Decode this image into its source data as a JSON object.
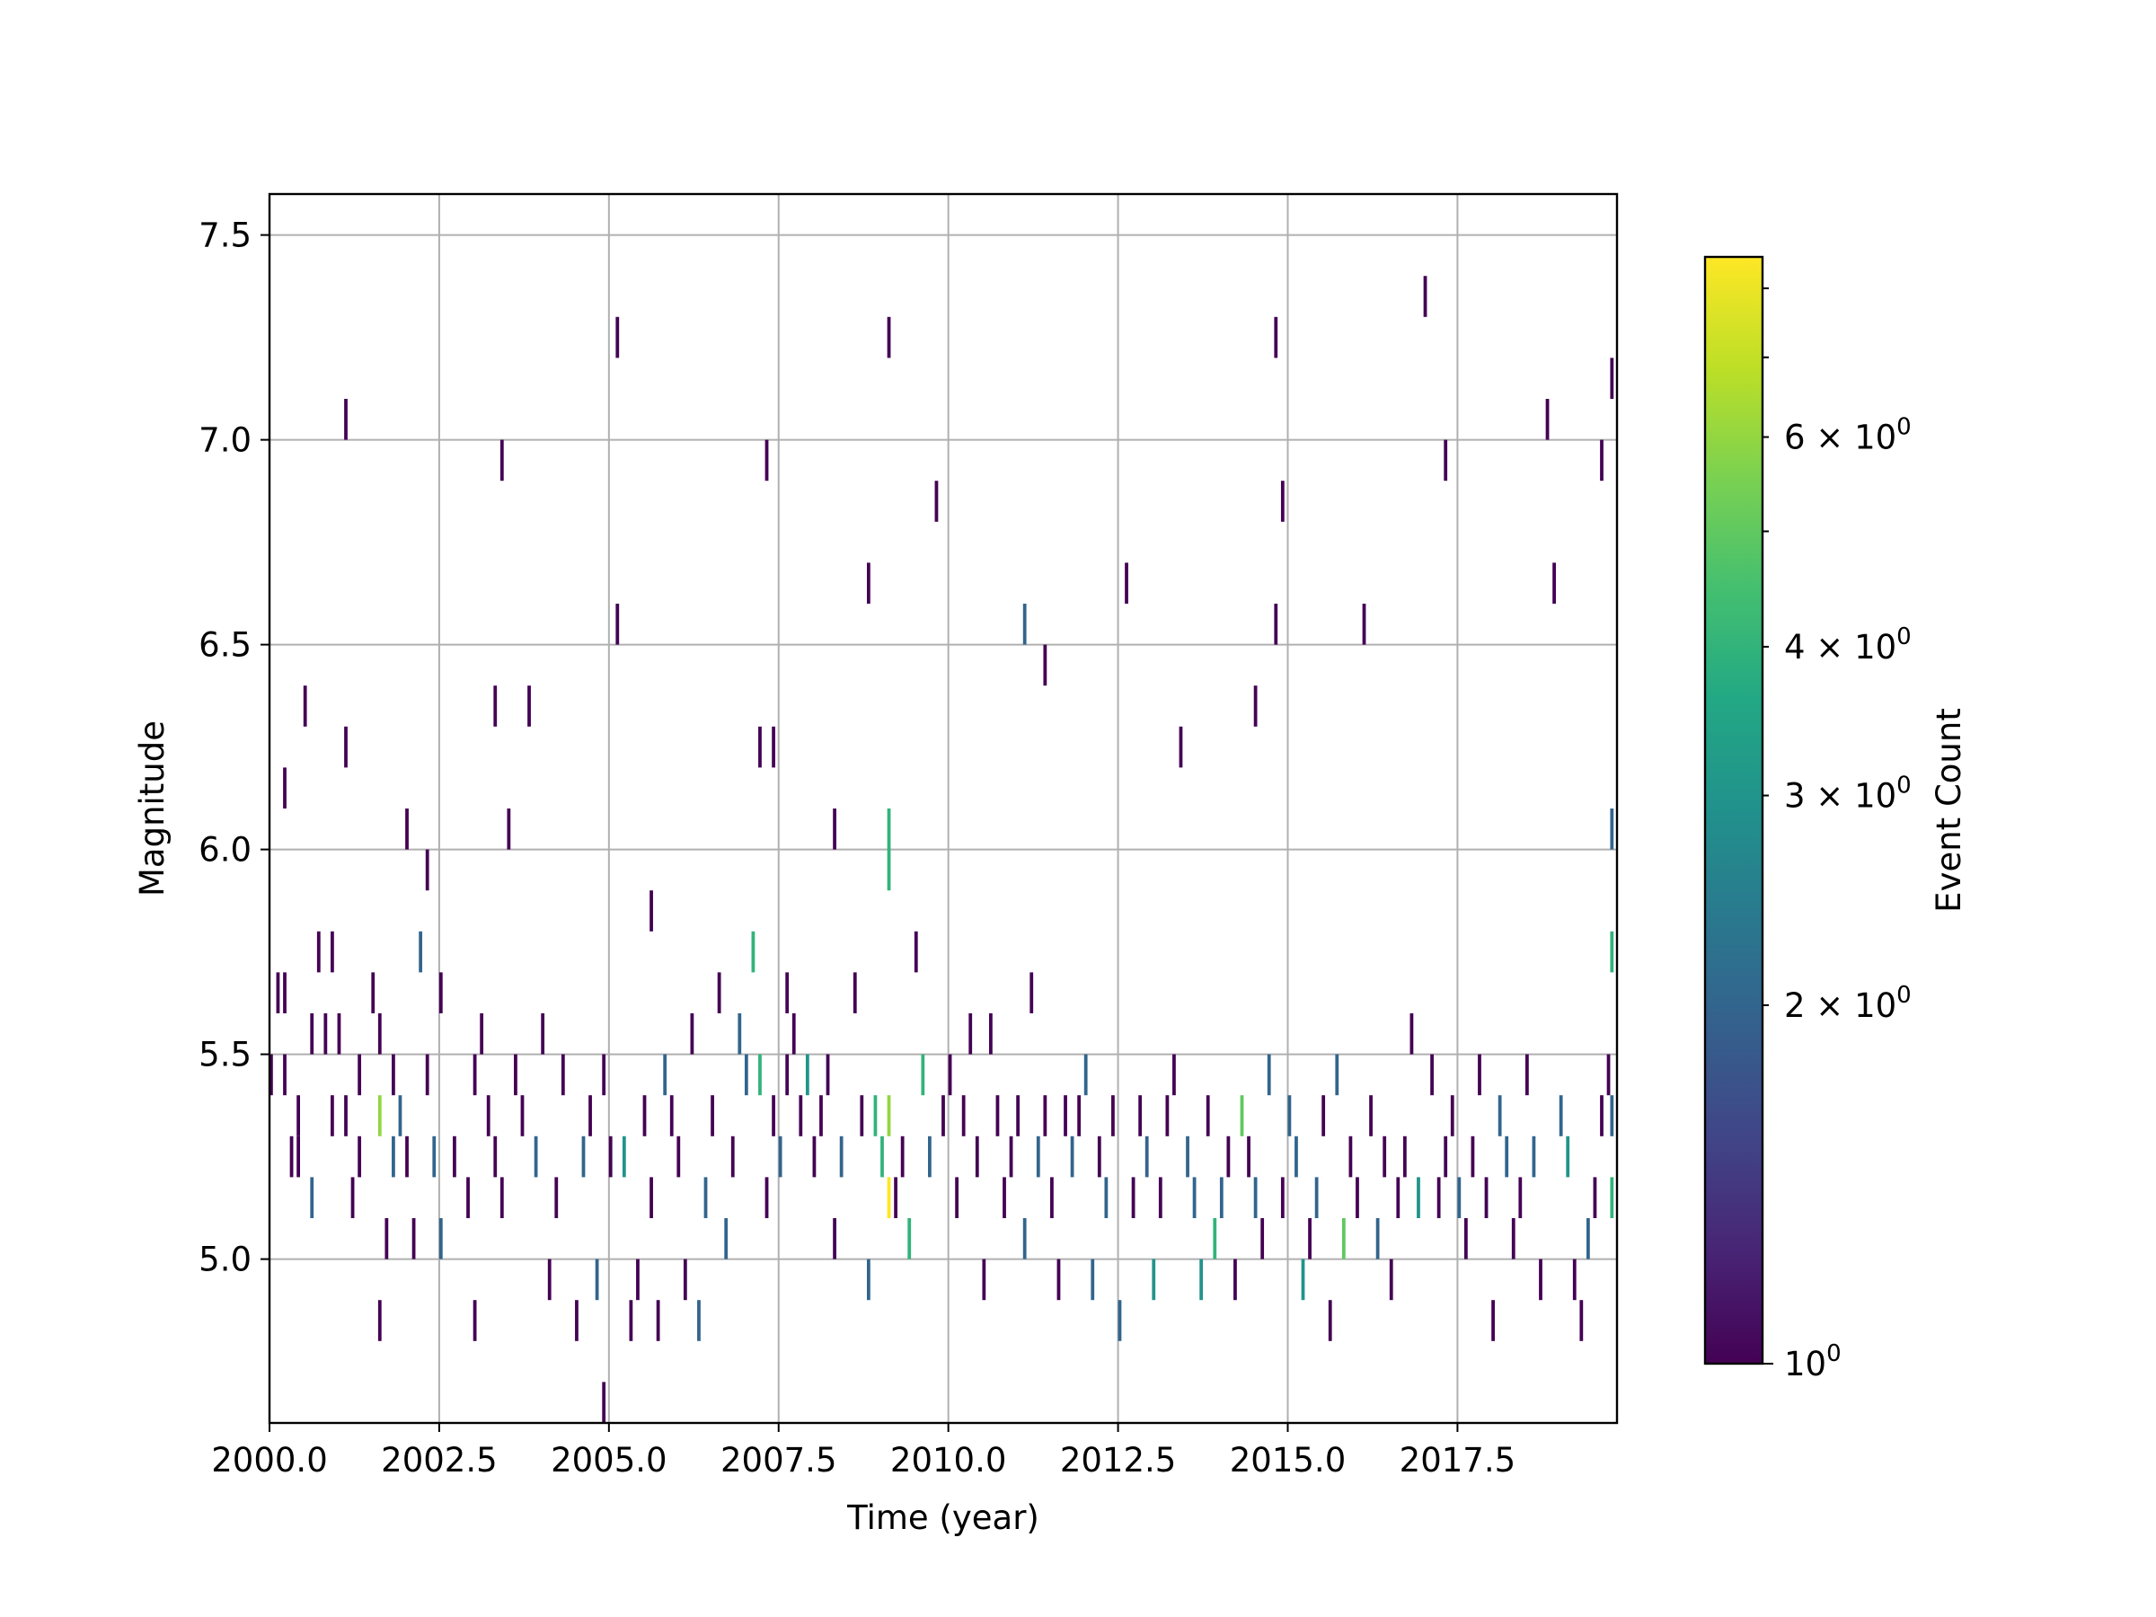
{
  "chart_data": {
    "type": "heatmap",
    "title": "",
    "xlabel": "Time (year)",
    "ylabel": "Magnitude",
    "xlim": [
      2000.0,
      2019.85
    ],
    "ylim": [
      4.6,
      7.6
    ],
    "x_ticks": [
      "2000.0",
      "2002.5",
      "2005.0",
      "2007.5",
      "2010.0",
      "2012.5",
      "2015.0",
      "2017.5"
    ],
    "x_tick_values": [
      2000.0,
      2002.5,
      2005.0,
      2007.5,
      2010.0,
      2012.5,
      2015.0,
      2017.5
    ],
    "y_ticks": [
      "5.0",
      "5.5",
      "6.0",
      "6.5",
      "7.0",
      "7.5"
    ],
    "y_tick_values": [
      5.0,
      5.5,
      6.0,
      6.5,
      7.0,
      7.5
    ],
    "grid": true,
    "colormap": "viridis",
    "colorbar": {
      "label": "Event Count",
      "scale": "log",
      "range": [
        1,
        8.5
      ],
      "major_tick_values": [
        1
      ],
      "major_tick_labels": [
        "10"
      ],
      "major_tick_exponents": [
        "0"
      ],
      "minor_tick_values": [
        2,
        3,
        4,
        6
      ],
      "minor_tick_labels": [
        "2 × 10",
        "3 × 10",
        "4 × 10",
        "6 × 10"
      ],
      "minor_tick_exponents": [
        "0",
        "0",
        "0",
        "0"
      ],
      "minor_unlabeled_tick_values": [
        5,
        7,
        8
      ]
    },
    "cells": [
      [
        2000.0,
        5.4,
        1
      ],
      [
        2000.2,
        5.4,
        1
      ],
      [
        2000.1,
        5.6,
        1
      ],
      [
        2000.2,
        5.6,
        1
      ],
      [
        2000.3,
        5.2,
        1
      ],
      [
        2000.4,
        5.3,
        1
      ],
      [
        2000.6,
        5.5,
        1
      ],
      [
        2000.8,
        5.5,
        1
      ],
      [
        2000.7,
        5.7,
        1
      ],
      [
        2000.9,
        5.7,
        1
      ],
      [
        2000.5,
        6.3,
        1
      ],
      [
        2000.2,
        6.1,
        1
      ],
      [
        2000.4,
        5.2,
        1
      ],
      [
        2000.6,
        5.1,
        2
      ],
      [
        2000.9,
        5.3,
        1
      ],
      [
        2001.0,
        5.5,
        1
      ],
      [
        2001.1,
        5.3,
        1
      ],
      [
        2001.2,
        5.1,
        1
      ],
      [
        2001.3,
        5.2,
        1
      ],
      [
        2001.1,
        7.0,
        1
      ],
      [
        2001.1,
        6.2,
        1
      ],
      [
        2001.3,
        5.4,
        1
      ],
      [
        2001.5,
        5.6,
        1
      ],
      [
        2001.6,
        5.5,
        1
      ],
      [
        2001.7,
        5.0,
        1
      ],
      [
        2001.6,
        4.8,
        1
      ],
      [
        2001.6,
        5.3,
        6
      ],
      [
        2001.8,
        5.2,
        2
      ],
      [
        2001.8,
        5.4,
        1
      ],
      [
        2001.9,
        5.3,
        2
      ],
      [
        2002.0,
        5.2,
        1
      ],
      [
        2002.1,
        5.0,
        1
      ],
      [
        2002.2,
        5.7,
        2
      ],
      [
        2002.3,
        5.4,
        1
      ],
      [
        2002.4,
        5.2,
        2
      ],
      [
        2002.5,
        5.0,
        2
      ],
      [
        2002.5,
        5.6,
        1
      ],
      [
        2002.3,
        5.9,
        1
      ],
      [
        2002.0,
        6.0,
        1
      ],
      [
        2002.7,
        5.2,
        1
      ],
      [
        2002.9,
        5.1,
        1
      ],
      [
        2003.0,
        5.4,
        1
      ],
      [
        2003.1,
        5.5,
        1
      ],
      [
        2003.2,
        5.3,
        1
      ],
      [
        2003.3,
        5.2,
        1
      ],
      [
        2003.4,
        5.1,
        1
      ],
      [
        2003.3,
        6.3,
        1
      ],
      [
        2003.4,
        6.9,
        1
      ],
      [
        2003.5,
        6.0,
        1
      ],
      [
        2003.6,
        5.4,
        1
      ],
      [
        2003.7,
        5.3,
        1
      ],
      [
        2003.9,
        5.2,
        2
      ],
      [
        2003.0,
        4.8,
        1
      ],
      [
        2003.8,
        6.3,
        1
      ],
      [
        2004.0,
        5.5,
        1
      ],
      [
        2004.2,
        5.1,
        1
      ],
      [
        2004.3,
        5.4,
        1
      ],
      [
        2004.1,
        4.9,
        1
      ],
      [
        2004.5,
        4.8,
        1
      ],
      [
        2004.6,
        5.2,
        2
      ],
      [
        2004.7,
        5.3,
        1
      ],
      [
        2004.8,
        4.9,
        2
      ],
      [
        2004.9,
        4.6,
        1
      ],
      [
        2004.9,
        5.4,
        1
      ],
      [
        2005.0,
        5.2,
        1
      ],
      [
        2005.1,
        7.2,
        1
      ],
      [
        2005.1,
        6.5,
        1
      ],
      [
        2005.2,
        5.2,
        3
      ],
      [
        2005.3,
        4.8,
        1
      ],
      [
        2005.4,
        4.9,
        1
      ],
      [
        2005.5,
        5.3,
        1
      ],
      [
        2005.6,
        5.1,
        1
      ],
      [
        2005.6,
        5.8,
        1
      ],
      [
        2005.7,
        4.8,
        1
      ],
      [
        2005.8,
        5.4,
        2
      ],
      [
        2005.9,
        5.3,
        1
      ],
      [
        2006.0,
        5.2,
        1
      ],
      [
        2006.1,
        4.9,
        1
      ],
      [
        2006.2,
        5.5,
        1
      ],
      [
        2006.3,
        4.8,
        2
      ],
      [
        2006.4,
        5.1,
        2
      ],
      [
        2006.5,
        5.3,
        1
      ],
      [
        2006.6,
        5.6,
        1
      ],
      [
        2006.7,
        5.0,
        2
      ],
      [
        2006.8,
        5.2,
        1
      ],
      [
        2006.9,
        5.5,
        2
      ],
      [
        2007.0,
        5.4,
        2
      ],
      [
        2007.1,
        5.7,
        4
      ],
      [
        2007.2,
        5.4,
        4
      ],
      [
        2007.3,
        5.1,
        1
      ],
      [
        2007.4,
        5.3,
        1
      ],
      [
        2007.5,
        5.2,
        2
      ],
      [
        2007.6,
        5.6,
        1
      ],
      [
        2007.6,
        5.4,
        1
      ],
      [
        2007.4,
        6.2,
        1
      ],
      [
        2007.2,
        6.2,
        1
      ],
      [
        2007.3,
        6.9,
        1
      ],
      [
        2007.7,
        5.5,
        1
      ],
      [
        2007.8,
        5.3,
        1
      ],
      [
        2007.9,
        5.4,
        3
      ],
      [
        2008.0,
        5.2,
        1
      ],
      [
        2008.1,
        5.3,
        1
      ],
      [
        2008.3,
        5.0,
        1
      ],
      [
        2008.2,
        5.4,
        1
      ],
      [
        2008.3,
        6.0,
        1
      ],
      [
        2008.4,
        5.2,
        2
      ],
      [
        2008.6,
        5.6,
        1
      ],
      [
        2008.7,
        5.3,
        1
      ],
      [
        2008.8,
        4.9,
        2
      ],
      [
        2008.8,
        6.6,
        1
      ],
      [
        2008.9,
        5.3,
        4
      ],
      [
        2009.0,
        5.2,
        4
      ],
      [
        2009.1,
        5.1,
        8.5
      ],
      [
        2009.1,
        5.3,
        6
      ],
      [
        2009.1,
        5.9,
        4
      ],
      [
        2009.1,
        6.0,
        4
      ],
      [
        2009.1,
        7.2,
        1
      ],
      [
        2009.2,
        5.1,
        1
      ],
      [
        2009.3,
        5.2,
        1
      ],
      [
        2009.4,
        5.0,
        4
      ],
      [
        2009.5,
        5.7,
        1
      ],
      [
        2009.6,
        5.4,
        4
      ],
      [
        2009.7,
        5.2,
        2
      ],
      [
        2009.8,
        6.8,
        1
      ],
      [
        2009.9,
        5.3,
        1
      ],
      [
        2010.0,
        5.4,
        1
      ],
      [
        2010.1,
        5.1,
        1
      ],
      [
        2010.2,
        5.3,
        1
      ],
      [
        2010.3,
        5.5,
        1
      ],
      [
        2010.4,
        5.2,
        1
      ],
      [
        2010.5,
        4.9,
        1
      ],
      [
        2010.6,
        5.5,
        1
      ],
      [
        2010.7,
        5.3,
        1
      ],
      [
        2010.8,
        5.1,
        1
      ],
      [
        2010.9,
        5.2,
        1
      ],
      [
        2011.1,
        5.0,
        2
      ],
      [
        2011.0,
        5.3,
        1
      ],
      [
        2011.1,
        6.5,
        2
      ],
      [
        2011.2,
        5.6,
        1
      ],
      [
        2011.3,
        5.2,
        2
      ],
      [
        2011.4,
        5.3,
        1
      ],
      [
        2011.4,
        6.4,
        1
      ],
      [
        2011.5,
        5.1,
        1
      ],
      [
        2011.6,
        4.9,
        1
      ],
      [
        2011.7,
        5.3,
        1
      ],
      [
        2011.8,
        5.2,
        2
      ],
      [
        2011.9,
        5.3,
        1
      ],
      [
        2012.0,
        5.4,
        2
      ],
      [
        2012.1,
        4.9,
        2
      ],
      [
        2012.2,
        5.2,
        1
      ],
      [
        2012.3,
        5.1,
        2
      ],
      [
        2012.4,
        5.3,
        1
      ],
      [
        2012.5,
        4.8,
        2
      ],
      [
        2012.6,
        6.6,
        1
      ],
      [
        2012.7,
        5.1,
        1
      ],
      [
        2012.8,
        5.3,
        1
      ],
      [
        2012.9,
        5.2,
        2
      ],
      [
        2013.0,
        4.9,
        3
      ],
      [
        2013.1,
        5.1,
        1
      ],
      [
        2013.2,
        5.3,
        1
      ],
      [
        2013.3,
        5.4,
        1
      ],
      [
        2013.4,
        6.2,
        1
      ],
      [
        2013.5,
        5.2,
        2
      ],
      [
        2013.6,
        5.1,
        2
      ],
      [
        2013.7,
        4.9,
        3
      ],
      [
        2013.8,
        5.3,
        1
      ],
      [
        2013.9,
        5.0,
        4
      ],
      [
        2014.0,
        5.1,
        2
      ],
      [
        2014.1,
        5.2,
        1
      ],
      [
        2014.2,
        4.9,
        1
      ],
      [
        2014.3,
        5.3,
        5
      ],
      [
        2014.4,
        5.2,
        1
      ],
      [
        2014.5,
        5.1,
        2
      ],
      [
        2014.5,
        6.3,
        1
      ],
      [
        2014.6,
        5.0,
        1
      ],
      [
        2014.7,
        5.4,
        2
      ],
      [
        2014.8,
        7.2,
        1
      ],
      [
        2014.8,
        6.5,
        1
      ],
      [
        2014.9,
        6.8,
        1
      ],
      [
        2014.9,
        5.1,
        1
      ],
      [
        2015.0,
        5.3,
        2
      ],
      [
        2015.1,
        5.2,
        2
      ],
      [
        2015.2,
        4.9,
        3
      ],
      [
        2015.3,
        5.0,
        1
      ],
      [
        2015.4,
        5.1,
        2
      ],
      [
        2015.5,
        5.3,
        1
      ],
      [
        2015.6,
        4.8,
        1
      ],
      [
        2015.7,
        5.4,
        2
      ],
      [
        2015.8,
        5.0,
        5
      ],
      [
        2015.9,
        5.2,
        1
      ],
      [
        2016.0,
        5.1,
        1
      ],
      [
        2016.1,
        6.5,
        1
      ],
      [
        2016.2,
        5.3,
        1
      ],
      [
        2016.3,
        5.0,
        2
      ],
      [
        2016.4,
        5.2,
        1
      ],
      [
        2016.5,
        4.9,
        1
      ],
      [
        2016.6,
        5.1,
        1
      ],
      [
        2016.7,
        5.2,
        1
      ],
      [
        2016.8,
        5.5,
        1
      ],
      [
        2016.9,
        5.1,
        3
      ],
      [
        2017.0,
        7.3,
        1
      ],
      [
        2017.1,
        5.4,
        1
      ],
      [
        2017.2,
        5.1,
        1
      ],
      [
        2017.3,
        5.2,
        1
      ],
      [
        2017.3,
        6.9,
        1
      ],
      [
        2017.4,
        5.3,
        1
      ],
      [
        2017.5,
        5.1,
        2
      ],
      [
        2017.6,
        5.0,
        1
      ],
      [
        2017.7,
        5.2,
        1
      ],
      [
        2017.8,
        5.4,
        1
      ],
      [
        2017.9,
        5.1,
        1
      ],
      [
        2018.0,
        4.8,
        1
      ],
      [
        2018.1,
        5.3,
        2
      ],
      [
        2018.2,
        5.2,
        2
      ],
      [
        2018.3,
        5.0,
        1
      ],
      [
        2018.4,
        5.1,
        1
      ],
      [
        2018.5,
        5.4,
        1
      ],
      [
        2018.6,
        5.2,
        2
      ],
      [
        2018.7,
        4.9,
        1
      ],
      [
        2018.8,
        7.0,
        1
      ],
      [
        2018.9,
        6.6,
        1
      ],
      [
        2019.0,
        5.3,
        2
      ],
      [
        2019.1,
        5.2,
        3
      ],
      [
        2019.2,
        4.9,
        1
      ],
      [
        2019.3,
        4.8,
        1
      ],
      [
        2019.4,
        5.0,
        2
      ],
      [
        2019.5,
        5.1,
        1
      ],
      [
        2019.6,
        5.3,
        1
      ],
      [
        2019.6,
        6.9,
        1
      ],
      [
        2019.7,
        5.4,
        1
      ],
      [
        2019.75,
        5.7,
        4
      ],
      [
        2019.75,
        5.3,
        2
      ],
      [
        2019.75,
        5.1,
        4
      ],
      [
        2019.75,
        6.0,
        2
      ],
      [
        2019.75,
        7.1,
        1
      ]
    ]
  }
}
